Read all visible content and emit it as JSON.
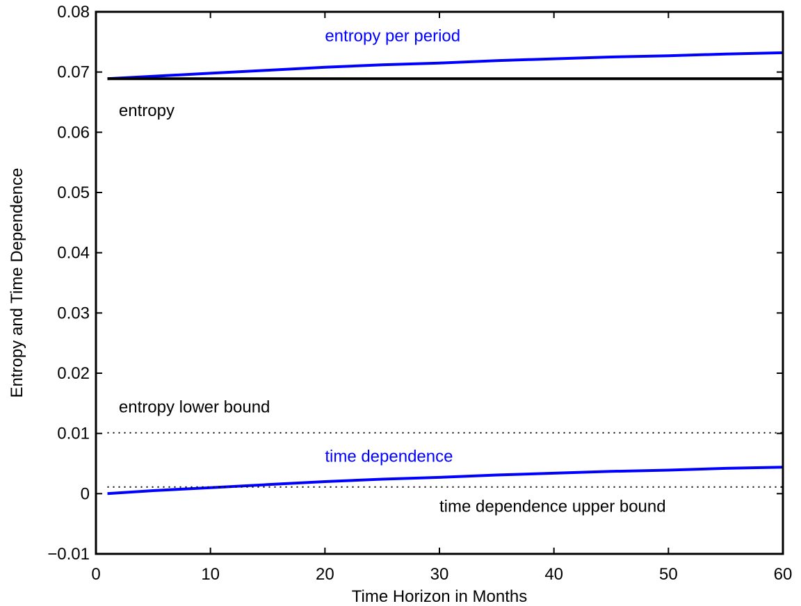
{
  "chart_data": {
    "type": "line",
    "title": "",
    "xlabel": "Time Horizon in Months",
    "ylabel": "Entropy and Time Dependence",
    "xlim": [
      0,
      60
    ],
    "ylim": [
      -0.01,
      0.08
    ],
    "xticks": [
      0,
      10,
      20,
      30,
      40,
      50,
      60
    ],
    "xtick_labels": [
      "0",
      "10",
      "20",
      "30",
      "40",
      "50",
      "60"
    ],
    "yticks": [
      -0.01,
      0,
      0.01,
      0.02,
      0.03,
      0.04,
      0.05,
      0.06,
      0.07,
      0.08
    ],
    "ytick_labels": [
      "−0.01",
      "0",
      "0.01",
      "0.02",
      "0.03",
      "0.04",
      "0.05",
      "0.06",
      "0.07",
      "0.08"
    ],
    "grid": false,
    "series": [
      {
        "name": "entropy per period",
        "color": "#0000ff",
        "style": "solid",
        "x": [
          1,
          5,
          10,
          15,
          20,
          25,
          30,
          35,
          40,
          45,
          50,
          55,
          60
        ],
        "y": [
          0.0689,
          0.0693,
          0.0698,
          0.0703,
          0.0708,
          0.0712,
          0.0715,
          0.0719,
          0.0722,
          0.0725,
          0.0727,
          0.073,
          0.0732
        ]
      },
      {
        "name": "entropy",
        "color": "#000000",
        "style": "solid",
        "x": [
          1,
          60
        ],
        "y": [
          0.0689,
          0.0689
        ]
      },
      {
        "name": "entropy lower bound",
        "color": "#000000",
        "style": "dotted",
        "x": [
          1,
          60
        ],
        "y": [
          0.0101,
          0.0101
        ]
      },
      {
        "name": "time dependence",
        "color": "#0000ff",
        "style": "solid",
        "x": [
          1,
          5,
          10,
          15,
          20,
          25,
          30,
          35,
          40,
          45,
          50,
          55,
          60
        ],
        "y": [
          0.0,
          0.0005,
          0.001,
          0.0015,
          0.002,
          0.0024,
          0.0027,
          0.0031,
          0.0034,
          0.0037,
          0.0039,
          0.0042,
          0.0044
        ]
      },
      {
        "name": "time dependence upper bound",
        "color": "#000000",
        "style": "dotted",
        "x": [
          1,
          60
        ],
        "y": [
          0.0011,
          0.0011
        ]
      }
    ],
    "annotations": [
      {
        "text": "entropy per period",
        "x": 20,
        "y": 0.0751,
        "color": "#0000ff"
      },
      {
        "text": "entropy",
        "x": 2,
        "y": 0.0627,
        "color": "#000000"
      },
      {
        "text": "entropy lower bound",
        "x": 2,
        "y": 0.0135,
        "color": "#000000"
      },
      {
        "text": "time dependence",
        "x": 20,
        "y": 0.0053,
        "color": "#0000ff"
      },
      {
        "text": "time dependence upper bound",
        "x": 30,
        "y": -0.003,
        "color": "#000000"
      }
    ]
  }
}
